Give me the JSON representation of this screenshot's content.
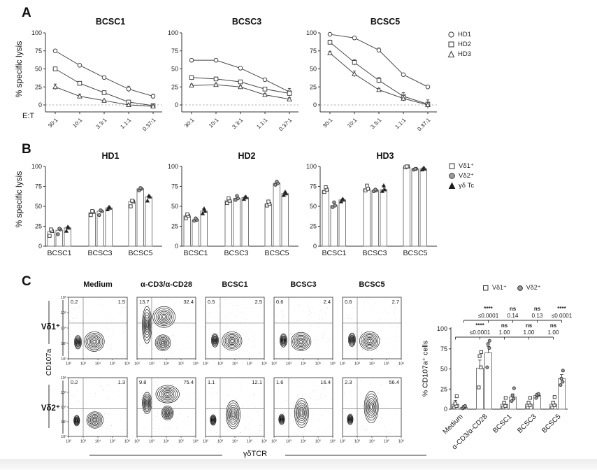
{
  "figure": {
    "panel_a_label": "A",
    "panel_b_label": "B",
    "panel_c_label": "C",
    "ylabel_ab": "% specific lysis",
    "et_label": "E:T"
  },
  "chart_data": [
    {
      "type": "line",
      "panel": "A",
      "title": "BCSC1",
      "x_categories": [
        "30:1",
        "10:1",
        "3.3:1",
        "1.1:1",
        "0.37:1"
      ],
      "ylabel": "% specific lysis",
      "ylim": [
        -10,
        100
      ],
      "y_ticks": [
        0,
        25,
        50,
        75,
        100
      ],
      "series": [
        {
          "name": "HD1",
          "marker": "circle",
          "values": [
            75,
            55,
            38,
            22,
            12
          ],
          "err": [
            2,
            2,
            2,
            4,
            3
          ]
        },
        {
          "name": "HD2",
          "marker": "square",
          "values": [
            50,
            30,
            17,
            4,
            -1
          ],
          "err": [
            2,
            2,
            1,
            2,
            2
          ]
        },
        {
          "name": "HD3",
          "marker": "triangle",
          "values": [
            25,
            12,
            6,
            0,
            -2
          ],
          "err": [
            4,
            3,
            1,
            1,
            2
          ]
        }
      ]
    },
    {
      "type": "line",
      "panel": "A",
      "title": "BCSC3",
      "x_categories": [
        "30:1",
        "10:1",
        "3.3:1",
        "1.1:1",
        "0.37:1"
      ],
      "ylabel": "% specific lysis",
      "ylim": [
        -10,
        100
      ],
      "y_ticks": [
        0,
        25,
        50,
        75,
        100
      ],
      "series": [
        {
          "name": "HD1",
          "marker": "circle",
          "values": [
            62,
            62,
            51,
            35,
            18
          ],
          "err": [
            2,
            2,
            2,
            2,
            5
          ]
        },
        {
          "name": "HD2",
          "marker": "square",
          "values": [
            38,
            36,
            32,
            22,
            16
          ],
          "err": [
            2,
            2,
            2,
            2,
            2
          ]
        },
        {
          "name": "HD3",
          "marker": "triangle",
          "values": [
            27,
            28,
            25,
            14,
            8
          ],
          "err": [
            2,
            2,
            2,
            2,
            2
          ]
        }
      ]
    },
    {
      "type": "line",
      "panel": "A",
      "title": "BCSC5",
      "x_categories": [
        "30:1",
        "10:1",
        "3.3:1",
        "1.1:1",
        "0.37:1"
      ],
      "ylabel": "% specific lysis",
      "ylim": [
        -10,
        100
      ],
      "y_ticks": [
        0,
        25,
        50,
        75,
        100
      ],
      "series": [
        {
          "name": "HD1",
          "marker": "circle",
          "values": [
            98,
            93,
            76,
            42,
            25
          ],
          "err": [
            1,
            2,
            3,
            2,
            2
          ]
        },
        {
          "name": "HD2",
          "marker": "square",
          "values": [
            87,
            59,
            34,
            12,
            1
          ],
          "err": [
            3,
            4,
            4,
            5,
            6
          ]
        },
        {
          "name": "HD3",
          "marker": "triangle",
          "values": [
            72,
            43,
            21,
            9,
            0
          ],
          "err": [
            2,
            4,
            2,
            4,
            4
          ]
        }
      ]
    },
    {
      "type": "bar",
      "panel": "B",
      "title": "HD1",
      "categories": [
        "BCSC1",
        "BCSC3",
        "BCSC5"
      ],
      "ylabel": "% specific lysis",
      "ylim": [
        0,
        100
      ],
      "y_ticks": [
        0,
        25,
        50,
        75,
        100
      ],
      "series": [
        {
          "name": "Vδ1⁺",
          "marker": "square",
          "values": [
            18,
            42,
            56
          ],
          "points": [
            [
              13,
              19,
              21
            ],
            [
              39,
              43,
              44
            ],
            [
              50,
              56,
              57
            ]
          ]
        },
        {
          "name": "Vδ2⁺",
          "marker": "circle",
          "values": [
            20,
            44,
            72
          ],
          "points": [
            [
              15,
              21,
              22
            ],
            [
              39,
              44,
              45
            ],
            [
              70,
              72,
              73
            ]
          ]
        },
        {
          "name": "γδ Tc",
          "marker": "triangle",
          "values": [
            23,
            48,
            62
          ],
          "points": [
            [
              19,
              23,
              24
            ],
            [
              46,
              48,
              49
            ],
            [
              57,
              62,
              63
            ]
          ]
        }
      ]
    },
    {
      "type": "bar",
      "panel": "B",
      "title": "HD2",
      "categories": [
        "BCSC1",
        "BCSC3",
        "BCSC5"
      ],
      "ylabel": "% specific lysis",
      "ylim": [
        0,
        100
      ],
      "y_ticks": [
        0,
        25,
        50,
        75,
        100
      ],
      "series": [
        {
          "name": "Vδ1⁺",
          "marker": "square",
          "values": [
            38,
            57,
            53
          ],
          "points": [
            [
              35,
              38,
              40
            ],
            [
              54,
              57,
              60
            ],
            [
              51,
              53,
              56
            ]
          ]
        },
        {
          "name": "Vδ2⁺",
          "marker": "circle",
          "values": [
            33,
            60,
            79
          ],
          "points": [
            [
              32,
              33,
              35
            ],
            [
              58,
              60,
              63
            ],
            [
              77,
              79,
              81
            ]
          ]
        },
        {
          "name": "γδ Tc",
          "marker": "triangle",
          "values": [
            44,
            61,
            66
          ],
          "points": [
            [
              41,
              44,
              47
            ],
            [
              59,
              61,
              62
            ],
            [
              64,
              66,
              68
            ]
          ]
        }
      ]
    },
    {
      "type": "bar",
      "panel": "B",
      "title": "HD3",
      "categories": [
        "BCSC1",
        "BCSC3",
        "BCSC5"
      ],
      "ylabel": "% specific lysis",
      "ylim": [
        0,
        100
      ],
      "y_ticks": [
        0,
        25,
        50,
        75,
        100
      ],
      "series": [
        {
          "name": "Vδ1⁺",
          "marker": "square",
          "values": [
            70,
            72,
            99
          ],
          "points": [
            [
              68,
              71,
              74
            ],
            [
              70,
              72,
              76
            ],
            [
              99,
              100,
              100
            ]
          ]
        },
        {
          "name": "Vδ2⁺",
          "marker": "circle",
          "values": [
            51,
            70,
            97
          ],
          "points": [
            [
              49,
              51,
              55
            ],
            [
              69,
              70,
              71
            ],
            [
              96,
              97,
              97
            ]
          ]
        },
        {
          "name": "γδ Tc",
          "marker": "triangle",
          "values": [
            58,
            71,
            97
          ],
          "points": [
            [
              56,
              58,
              59
            ],
            [
              69,
              71,
              76
            ],
            [
              96,
              97,
              98
            ]
          ]
        }
      ]
    },
    {
      "type": "contour-grid",
      "panel": "C",
      "rows": [
        "Vδ1⁺",
        "Vδ2⁺"
      ],
      "cols": [
        "Medium",
        "α-CD3/α-CD28",
        "BCSC1",
        "BCSC3",
        "BCSC5"
      ],
      "xlabel": "γδTCR",
      "ylabel": "CD107a",
      "axis_ticks": [
        "10²",
        "10³",
        "10⁴",
        "10⁵",
        "10⁶"
      ],
      "plots": [
        [
          {
            "ul": "0.2",
            "ur": "1.5",
            "pops": [
              [
                0.16,
                0.73,
                0.06,
                0.11
              ],
              [
                0.44,
                0.72,
                0.17,
                0.16
              ]
            ]
          },
          {
            "ul": "13.7",
            "ur": "32.4",
            "pops": [
              [
                0.17,
                0.45,
                0.08,
                0.3
              ],
              [
                0.46,
                0.32,
                0.19,
                0.17
              ],
              [
                0.44,
                0.74,
                0.13,
                0.13
              ]
            ]
          },
          {
            "ul": "0.5",
            "ur": "2.5",
            "pops": [
              [
                0.16,
                0.7,
                0.06,
                0.11
              ],
              [
                0.45,
                0.71,
                0.17,
                0.15
              ]
            ]
          },
          {
            "ul": "0.6",
            "ur": "2.4",
            "pops": [
              [
                0.16,
                0.7,
                0.06,
                0.11
              ],
              [
                0.46,
                0.72,
                0.17,
                0.15
              ]
            ]
          },
          {
            "ul": "0.6",
            "ur": "2.7",
            "pops": [
              [
                0.16,
                0.69,
                0.06,
                0.11
              ],
              [
                0.46,
                0.71,
                0.17,
                0.15
              ]
            ]
          }
        ],
        [
          {
            "ul": "0.2",
            "ur": "1.3",
            "pops": [
              [
                0.14,
                0.73,
                0.05,
                0.09
              ],
              [
                0.45,
                0.72,
                0.14,
                0.14
              ]
            ]
          },
          {
            "ul": "9.8",
            "ur": "75.4",
            "pops": [
              [
                0.17,
                0.43,
                0.08,
                0.18
              ],
              [
                0.52,
                0.28,
                0.2,
                0.15
              ],
              [
                0.52,
                0.6,
                0.1,
                0.12
              ]
            ]
          },
          {
            "ul": "1.1",
            "ur": "12.1",
            "pops": [
              [
                0.13,
                0.72,
                0.05,
                0.09
              ],
              [
                0.47,
                0.63,
                0.12,
                0.24
              ]
            ]
          },
          {
            "ul": "1.6",
            "ur": "16.4",
            "pops": [
              [
                0.13,
                0.71,
                0.05,
                0.09
              ],
              [
                0.47,
                0.6,
                0.12,
                0.25
              ]
            ]
          },
          {
            "ul": "2.3",
            "ur": "56.4",
            "pops": [
              [
                0.13,
                0.71,
                0.05,
                0.09
              ],
              [
                0.49,
                0.5,
                0.12,
                0.27
              ]
            ]
          }
        ]
      ]
    },
    {
      "type": "bar",
      "panel": "C",
      "ylabel": "% CD107a⁺ cells",
      "ylim": [
        0,
        100
      ],
      "y_ticks": [
        0,
        25,
        50,
        75,
        100
      ],
      "categories": [
        "Medium",
        "α-CD3/α-CD28",
        "BCSC1",
        "BCSC3",
        "BCSC5"
      ],
      "series": [
        {
          "name": "Vδ1⁺",
          "marker": "square",
          "values": [
            6,
            51,
            6,
            6,
            6
          ],
          "points": [
            [
              2,
              4,
              7,
              16
            ],
            [
              27,
              52,
              66,
              71
            ],
            [
              2,
              4,
              8,
              14
            ],
            [
              2,
              5,
              8,
              14
            ],
            [
              2,
              5,
              8,
              15
            ]
          ],
          "err": [
            5,
            10,
            4,
            4,
            4
          ]
        },
        {
          "name": "Vδ2⁺",
          "marker": "circle",
          "values": [
            2,
            70,
            15,
            17,
            38
          ],
          "points": [
            [
              1,
              2,
              3,
              4
            ],
            [
              52,
              76,
              81,
              85
            ],
            [
              10,
              13,
              17,
              26
            ],
            [
              14,
              17,
              18,
              19
            ],
            [
              30,
              34,
              38,
              48
            ]
          ],
          "err": [
            1,
            8,
            4,
            2,
            5
          ]
        }
      ],
      "significance": {
        "upper": [
          {
            "stars": "****",
            "p": "≤0.0001"
          },
          {
            "stars": "ns",
            "p": "0.14"
          },
          {
            "stars": "ns",
            "p": "0.13"
          },
          {
            "stars": "****",
            "p": "≤0.0001"
          }
        ],
        "lower": [
          {
            "stars": "****",
            "p": "≤0.0001"
          },
          {
            "stars": "ns",
            "p": "1.00"
          },
          {
            "stars": "ns",
            "p": "1.00"
          },
          {
            "stars": "ns",
            "p": "1.00"
          }
        ]
      }
    }
  ],
  "colors": {
    "axis": "#333333",
    "line": "#4a4a4a",
    "bar_border": "#777777",
    "gray_fill": "#9a9a9a",
    "black_fill": "#1c1c1c",
    "dashed_zero": "#999999"
  }
}
